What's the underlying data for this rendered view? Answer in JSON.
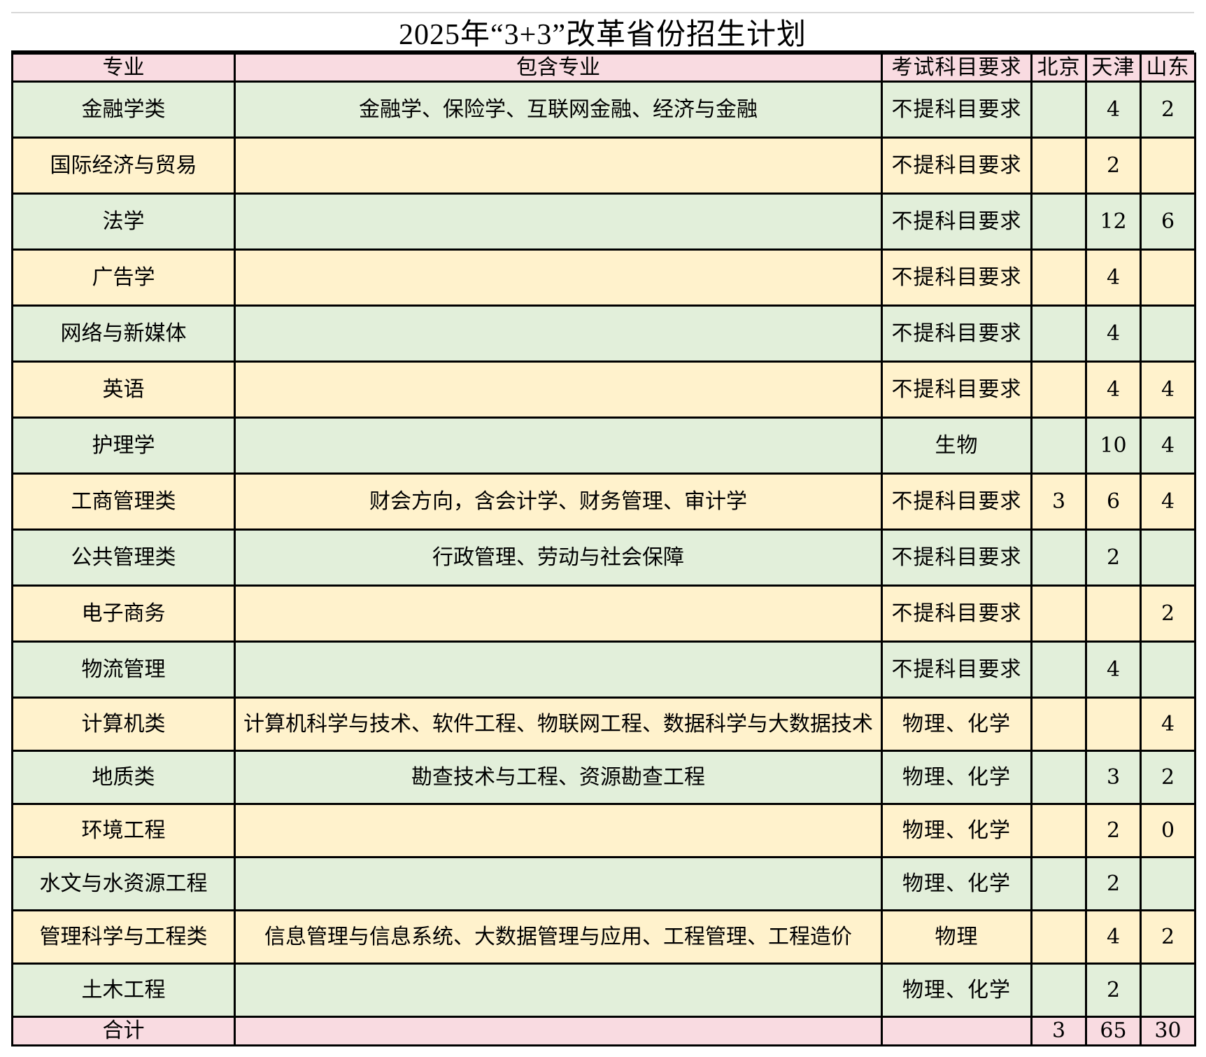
{
  "title": "2025年“3+3”改革省份招生计划",
  "colors": {
    "header_bg": "#f9dbe1",
    "green_row": "#e2efda",
    "yellow_row": "#fff2cc",
    "border": "#000000"
  },
  "headers": [
    "专业",
    "包含专业",
    "考试科目要求",
    "北京",
    "天津",
    "山东"
  ],
  "rows": [
    {
      "major": "金融学类",
      "includes": "金融学、保险学、互联网金融、经济与金融",
      "req": "不提科目要求",
      "beijing": "",
      "tianjin": "4",
      "shandong": "2"
    },
    {
      "major": "国际经济与贸易",
      "includes": "",
      "req": "不提科目要求",
      "beijing": "",
      "tianjin": "2",
      "shandong": ""
    },
    {
      "major": "法学",
      "includes": "",
      "req": "不提科目要求",
      "beijing": "",
      "tianjin": "12",
      "shandong": "6"
    },
    {
      "major": "广告学",
      "includes": "",
      "req": "不提科目要求",
      "beijing": "",
      "tianjin": "4",
      "shandong": ""
    },
    {
      "major": "网络与新媒体",
      "includes": "",
      "req": "不提科目要求",
      "beijing": "",
      "tianjin": "4",
      "shandong": ""
    },
    {
      "major": "英语",
      "includes": "",
      "req": "不提科目要求",
      "beijing": "",
      "tianjin": "4",
      "shandong": "4"
    },
    {
      "major": "护理学",
      "includes": "",
      "req": "生物",
      "beijing": "",
      "tianjin": "10",
      "shandong": "4"
    },
    {
      "major": "工商管理类",
      "includes": "财会方向，含会计学、财务管理、审计学",
      "req": "不提科目要求",
      "beijing": "3",
      "tianjin": "6",
      "shandong": "4"
    },
    {
      "major": "公共管理类",
      "includes": "行政管理、劳动与社会保障",
      "req": "不提科目要求",
      "beijing": "",
      "tianjin": "2",
      "shandong": ""
    },
    {
      "major": "电子商务",
      "includes": "",
      "req": "不提科目要求",
      "beijing": "",
      "tianjin": "",
      "shandong": "2"
    },
    {
      "major": "物流管理",
      "includes": "",
      "req": "不提科目要求",
      "beijing": "",
      "tianjin": "4",
      "shandong": ""
    },
    {
      "major": "计算机类",
      "includes": "计算机科学与技术、软件工程、物联网工程、数据科学与大数据技术",
      "req": "物理、化学",
      "beijing": "",
      "tianjin": "",
      "shandong": "4"
    },
    {
      "major": "地质类",
      "includes": "勘查技术与工程、资源勘查工程",
      "req": "物理、化学",
      "beijing": "",
      "tianjin": "3",
      "shandong": "2"
    },
    {
      "major": "环境工程",
      "includes": "",
      "req": "物理、化学",
      "beijing": "",
      "tianjin": "2",
      "shandong": "0"
    },
    {
      "major": "水文与水资源工程",
      "includes": "",
      "req": "物理、化学",
      "beijing": "",
      "tianjin": "2",
      "shandong": ""
    },
    {
      "major": "管理科学与工程类",
      "includes": "信息管理与信息系统、大数据管理与应用、工程管理、工程造价",
      "req": "物理",
      "beijing": "",
      "tianjin": "4",
      "shandong": "2"
    },
    {
      "major": "土木工程",
      "includes": "",
      "req": "物理、化学",
      "beijing": "",
      "tianjin": "2",
      "shandong": ""
    }
  ],
  "total": {
    "label": "合计",
    "includes": "",
    "req": "",
    "beijing": "3",
    "tianjin": "65",
    "shandong": "30"
  }
}
